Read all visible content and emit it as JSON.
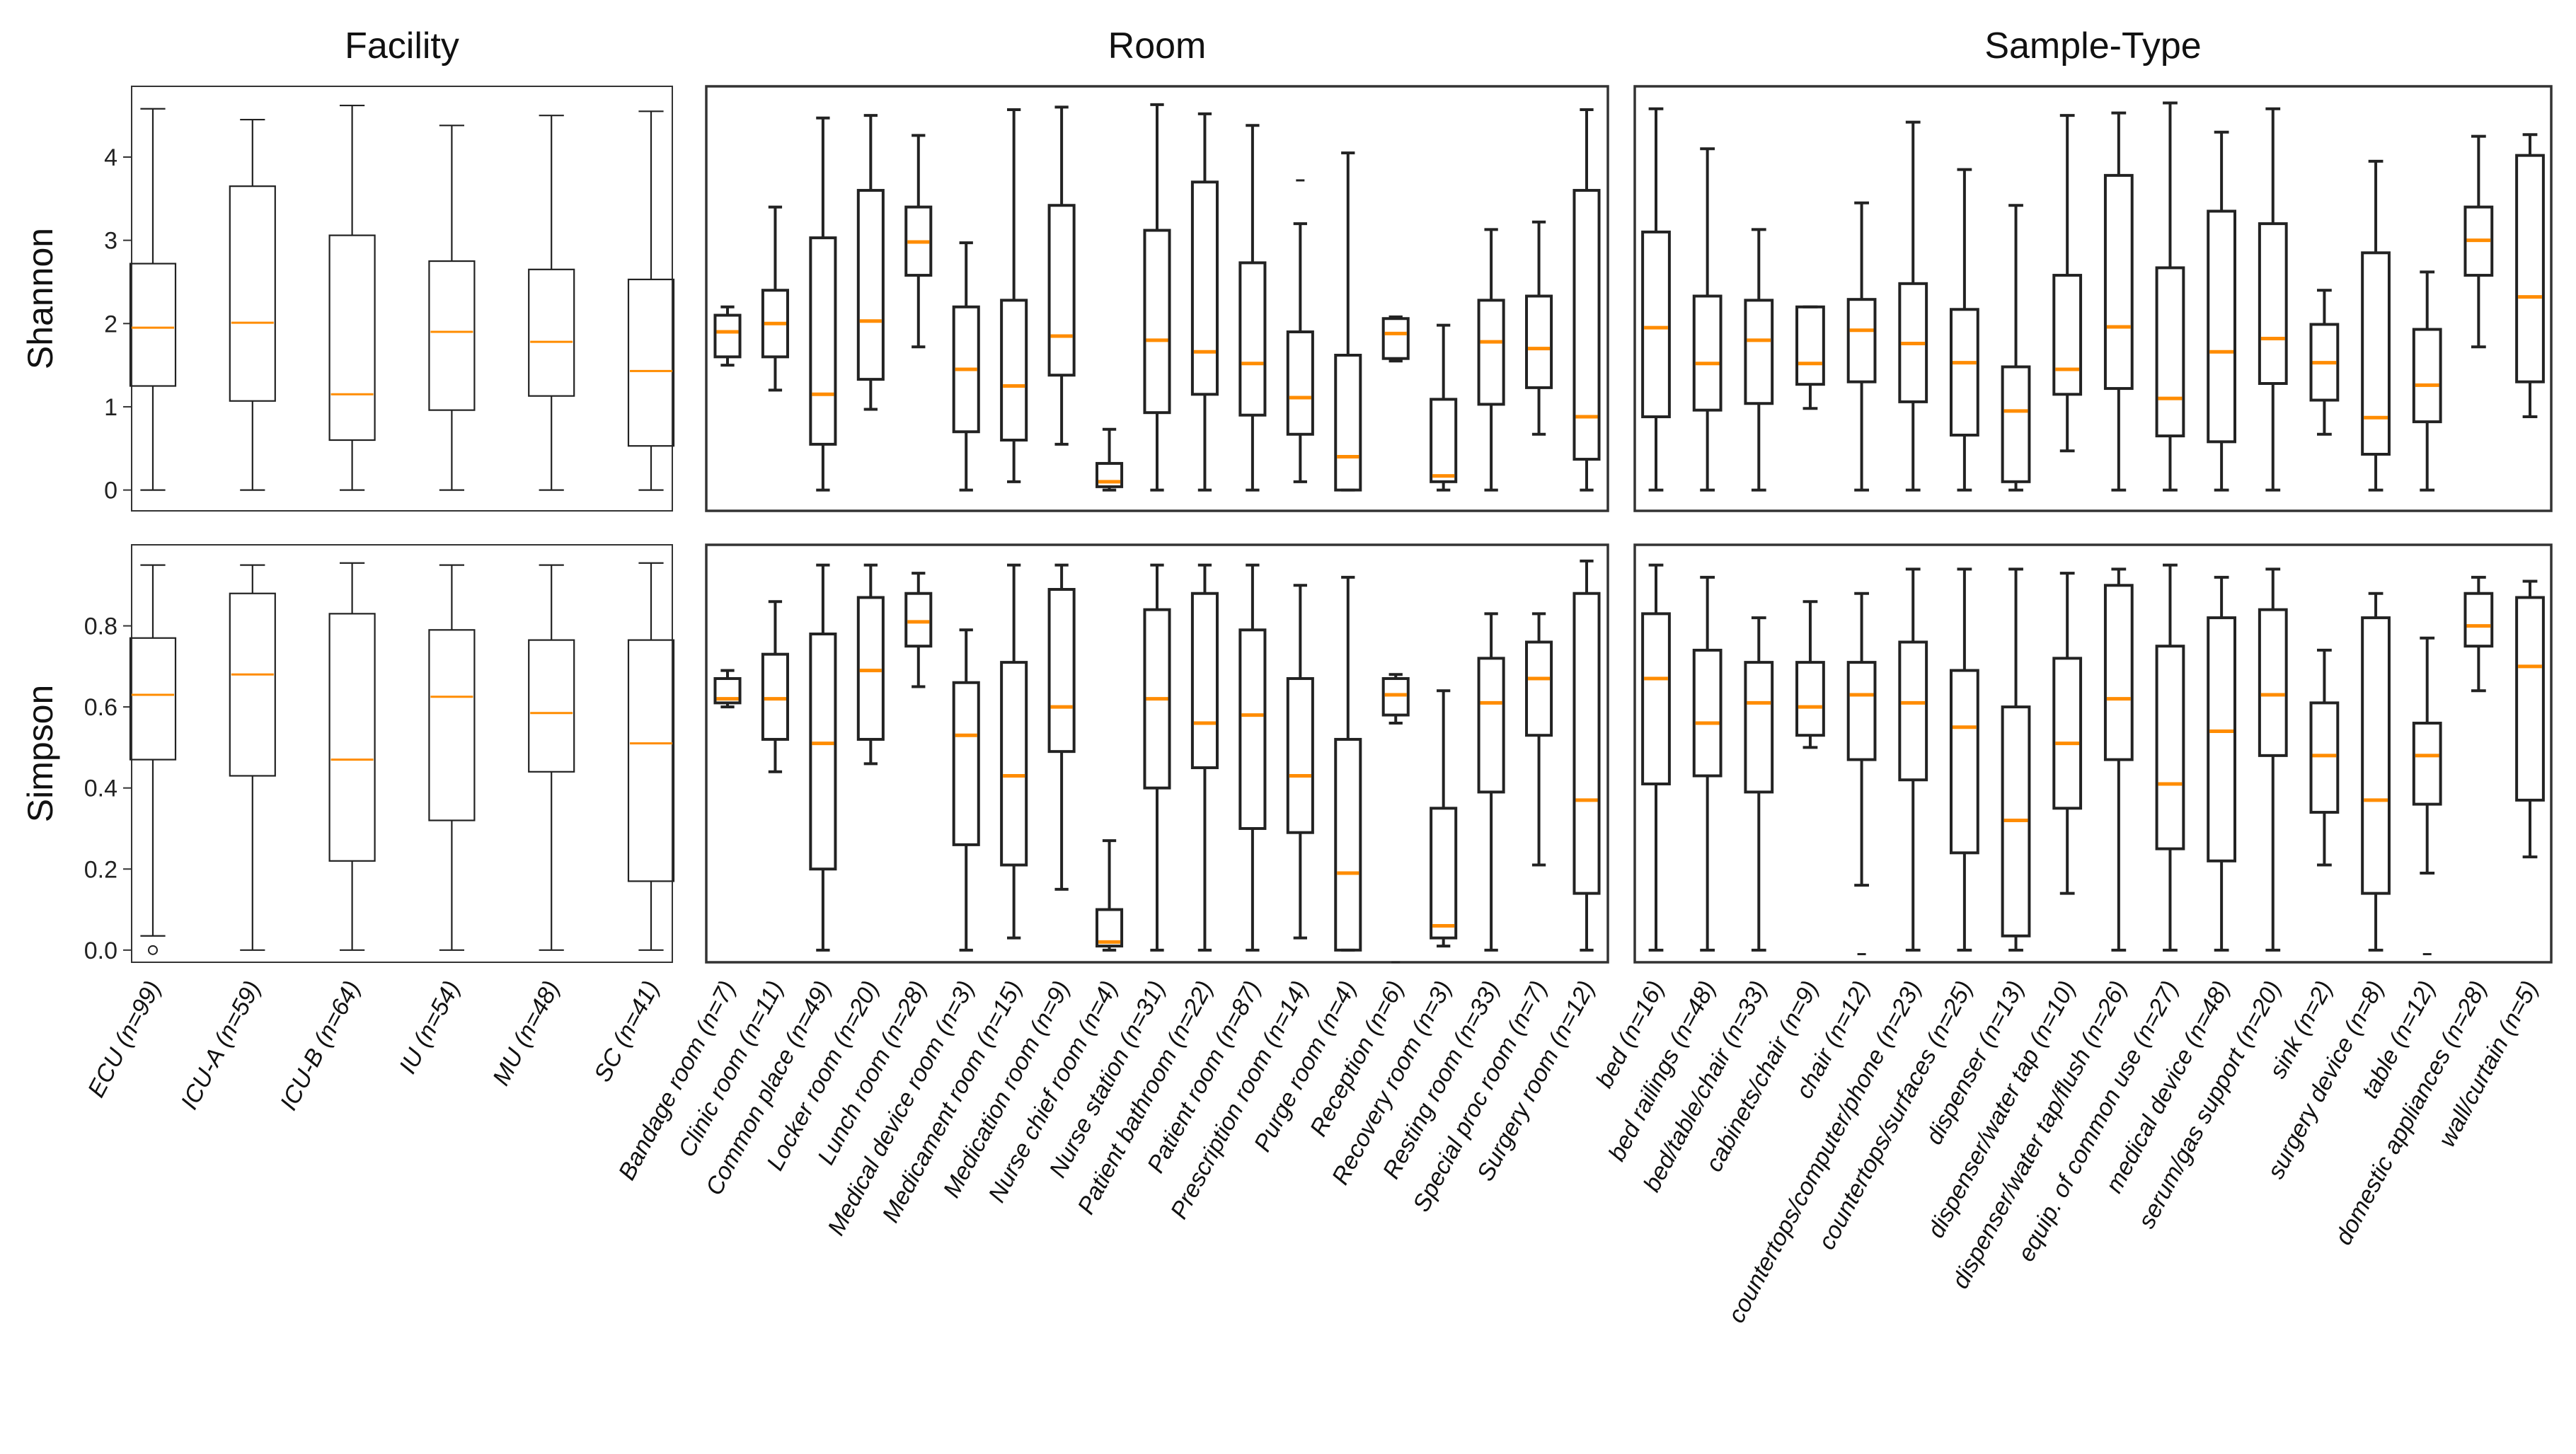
{
  "chart_data": {
    "type": "boxplot",
    "columns": [
      {
        "title": "Facility",
        "categories": [
          "ECU (n=99)",
          "ICU-A (n=59)",
          "ICU-B (n=64)",
          "IU (n=54)",
          "MU (n=48)",
          "SC (n=41)"
        ],
        "shannon": [
          [
            0,
            1.25,
            1.95,
            2.72,
            4.58
          ],
          [
            0,
            1.07,
            2.01,
            3.65,
            4.45
          ],
          [
            0,
            0.6,
            1.15,
            3.06,
            4.62
          ],
          [
            0,
            0.96,
            1.9,
            2.75,
            4.38
          ],
          [
            0,
            1.13,
            1.78,
            2.65,
            4.5
          ],
          [
            0,
            0.53,
            1.43,
            2.53,
            4.55
          ]
        ],
        "simpson": [
          [
            0.035,
            0.47,
            0.63,
            0.77,
            0.95
          ],
          [
            0,
            0.43,
            0.68,
            0.88,
            0.95
          ],
          [
            0,
            0.22,
            0.47,
            0.83,
            0.955
          ],
          [
            0,
            0.32,
            0.625,
            0.79,
            0.95
          ],
          [
            0,
            0.44,
            0.585,
            0.765,
            0.95
          ],
          [
            0,
            0.17,
            0.51,
            0.765,
            0.955
          ]
        ],
        "simpson_outliers": [
          [
            0.0
          ],
          [],
          [],
          [],
          [],
          []
        ]
      },
      {
        "title": "Room",
        "categories": [
          "Bandage room (n=7)",
          "Clinic room (n=11)",
          "Common place (n=49)",
          "Locker room (n=20)",
          "Lunch room (n=28)",
          "Medical device room (n=3)",
          "Medicament room (n=15)",
          "Medication room (n=9)",
          "Nurse chief room (n=4)",
          "Nurse station (n=31)",
          "Patient bathroom (n=22)",
          "Patient room (n=87)",
          "Prescription room (n=14)",
          "Purge room (n=4)",
          "Reception (n=6)",
          "Recovery room (n=3)",
          "Resting room (n=33)",
          "Special proc room (n=7)",
          "Surgery room (n=12)"
        ],
        "shannon": [
          [
            1.5,
            1.6,
            1.9,
            2.1,
            2.2
          ],
          [
            1.2,
            1.6,
            2.0,
            2.4,
            3.4
          ],
          [
            0,
            0.55,
            1.15,
            3.03,
            4.47
          ],
          [
            0.97,
            1.33,
            2.03,
            3.6,
            4.5
          ],
          [
            1.72,
            2.58,
            2.98,
            3.4,
            4.26
          ],
          [
            0,
            0.7,
            1.45,
            2.2,
            2.97
          ],
          [
            0.1,
            0.6,
            1.25,
            2.28,
            4.57
          ],
          [
            0.55,
            1.38,
            1.85,
            3.42,
            4.6
          ],
          [
            0,
            0.04,
            0.1,
            0.32,
            0.73
          ],
          [
            0,
            0.93,
            1.8,
            3.12,
            4.63
          ],
          [
            0,
            1.15,
            1.66,
            3.7,
            4.52
          ],
          [
            0,
            0.9,
            1.52,
            2.73,
            4.38
          ],
          [
            0.1,
            0.67,
            1.11,
            1.9,
            3.2
          ],
          [
            0,
            0,
            0.4,
            1.62,
            4.05
          ],
          [
            1.55,
            1.58,
            1.88,
            2.06,
            2.08
          ],
          [
            0,
            0.1,
            0.17,
            1.09,
            1.98
          ],
          [
            0,
            1.03,
            1.78,
            2.28,
            3.13
          ],
          [
            0.67,
            1.23,
            1.7,
            2.33,
            3.22
          ],
          [
            0,
            0.37,
            0.88,
            3.6,
            4.57
          ]
        ],
        "simpson": [
          [
            0.6,
            0.61,
            0.62,
            0.67,
            0.69
          ],
          [
            0.44,
            0.52,
            0.62,
            0.73,
            0.86
          ],
          [
            0,
            0.2,
            0.51,
            0.78,
            0.95
          ],
          [
            0.46,
            0.52,
            0.69,
            0.87,
            0.95
          ],
          [
            0.65,
            0.75,
            0.81,
            0.88,
            0.93
          ],
          [
            0,
            0.26,
            0.53,
            0.66,
            0.79
          ],
          [
            0.03,
            0.21,
            0.43,
            0.71,
            0.95
          ],
          [
            0.15,
            0.49,
            0.6,
            0.89,
            0.95
          ],
          [
            0,
            0.01,
            0.02,
            0.1,
            0.27
          ],
          [
            0,
            0.4,
            0.62,
            0.84,
            0.95
          ],
          [
            0,
            0.45,
            0.56,
            0.88,
            0.95
          ],
          [
            0,
            0.3,
            0.58,
            0.79,
            0.95
          ],
          [
            0.03,
            0.29,
            0.43,
            0.67,
            0.9
          ],
          [
            0,
            0,
            0.19,
            0.52,
            0.92
          ],
          [
            0.56,
            0.58,
            0.63,
            0.67,
            0.68
          ],
          [
            0.01,
            0.03,
            0.06,
            0.35,
            0.64
          ],
          [
            0,
            0.39,
            0.61,
            0.72,
            0.83
          ],
          [
            0.21,
            0.53,
            0.67,
            0.76,
            0.83
          ],
          [
            0,
            0.14,
            0.37,
            0.88,
            0.96
          ]
        ],
        "shannon_outliers": [
          [],
          [],
          [],
          [],
          [],
          [],
          [],
          [],
          [],
          [],
          [],
          [],
          [
            3.72
          ],
          [],
          [],
          [],
          [],
          [],
          []
        ],
        "simpson_outliers": [
          [],
          [],
          [],
          [],
          [],
          [],
          [],
          [],
          [],
          [],
          [],
          [],
          [],
          [],
          [
            -0.03
          ],
          [],
          [],
          [],
          []
        ]
      },
      {
        "title": "Sample-Type",
        "categories": [
          "bed (n=16)",
          "bed railings (n=48)",
          "bed/table/chair (n=33)",
          "cabinets/chair (n=9)",
          "chair (n=12)",
          "countertops/computer/phone (n=23)",
          "countertops/surfaces (n=25)",
          "dispenser (n=13)",
          "dispenser/water tap (n=10)",
          "dispenser/water tap/flush (n=26)",
          "equip. of common use (n=27)",
          "medical device (n=48)",
          "serum/gas support (n=20)",
          "sink (n=2)",
          "surgery device (n=8)",
          "table (n=12)",
          "domestic appliances (n=28)",
          "wall/curtain (n=5)"
        ],
        "shannon": [
          [
            0,
            0.88,
            1.95,
            3.1,
            4.58
          ],
          [
            0,
            0.96,
            1.52,
            2.33,
            4.1
          ],
          [
            0,
            1.04,
            1.8,
            2.28,
            3.13
          ],
          [
            0.98,
            1.27,
            1.52,
            2.2,
            2.2
          ],
          [
            0,
            1.3,
            1.92,
            2.29,
            3.45
          ],
          [
            0,
            1.06,
            1.76,
            2.48,
            4.42
          ],
          [
            0,
            0.66,
            1.53,
            2.17,
            3.85
          ],
          [
            0,
            0.1,
            0.95,
            1.48,
            3.42
          ],
          [
            0.47,
            1.15,
            1.45,
            2.58,
            4.5
          ],
          [
            0,
            1.22,
            1.96,
            3.78,
            4.53
          ],
          [
            0,
            0.65,
            1.1,
            2.67,
            4.65
          ],
          [
            0,
            0.58,
            1.66,
            3.35,
            4.3
          ],
          [
            0,
            1.28,
            1.82,
            3.2,
            4.58
          ],
          [
            0.67,
            1.08,
            1.53,
            1.99,
            2.4
          ],
          [
            0,
            0.43,
            0.87,
            2.85,
            3.95
          ],
          [
            0,
            0.82,
            1.26,
            1.93,
            2.62
          ],
          [
            1.72,
            2.58,
            3.0,
            3.4,
            4.25
          ],
          [
            0.88,
            1.3,
            2.32,
            4.02,
            4.27
          ]
        ],
        "simpson": [
          [
            0,
            0.41,
            0.67,
            0.83,
            0.95
          ],
          [
            0,
            0.43,
            0.56,
            0.74,
            0.92
          ],
          [
            0,
            0.39,
            0.61,
            0.71,
            0.82
          ],
          [
            0.5,
            0.53,
            0.6,
            0.71,
            0.86
          ],
          [
            0.16,
            0.47,
            0.63,
            0.71,
            0.88
          ],
          [
            0,
            0.42,
            0.61,
            0.76,
            0.94
          ],
          [
            0,
            0.24,
            0.55,
            0.69,
            0.94
          ],
          [
            0,
            0.035,
            0.32,
            0.6,
            0.94
          ],
          [
            0.14,
            0.35,
            0.51,
            0.72,
            0.93
          ],
          [
            0,
            0.47,
            0.62,
            0.9,
            0.94
          ],
          [
            0,
            0.25,
            0.41,
            0.75,
            0.95
          ],
          [
            0,
            0.22,
            0.54,
            0.82,
            0.92
          ],
          [
            0,
            0.48,
            0.63,
            0.84,
            0.94
          ],
          [
            0.21,
            0.34,
            0.48,
            0.61,
            0.74
          ],
          [
            0,
            0.14,
            0.37,
            0.82,
            0.88
          ],
          [
            0.19,
            0.36,
            0.48,
            0.56,
            0.77
          ],
          [
            0.64,
            0.75,
            0.8,
            0.88,
            0.92
          ],
          [
            0.23,
            0.37,
            0.7,
            0.87,
            0.91
          ]
        ],
        "simpson_outliers": [
          [],
          [],
          [],
          [],
          [
            -0.01
          ],
          [],
          [],
          [],
          [],
          [],
          [],
          [],
          [],
          [],
          [],
          [
            -0.01
          ],
          [],
          []
        ]
      }
    ],
    "rows": [
      {
        "label": "Shannon",
        "ylim": [
          -0.25,
          4.85
        ],
        "yticks": [
          0,
          1,
          2,
          3,
          4
        ],
        "ytick_labels": [
          "0",
          "1",
          "2",
          "3",
          "4"
        ]
      },
      {
        "label": "Simpson",
        "ylim": [
          -0.03,
          1.0
        ],
        "yticks": [
          0.0,
          0.2,
          0.4,
          0.6,
          0.8
        ],
        "ytick_labels": [
          "0.0",
          "0.2",
          "0.4",
          "0.6",
          "0.8"
        ]
      }
    ],
    "colors": {
      "box": "#222222",
      "median": "#ff8c00",
      "panel_border": "#333333"
    },
    "legend": "none",
    "grid": false
  }
}
